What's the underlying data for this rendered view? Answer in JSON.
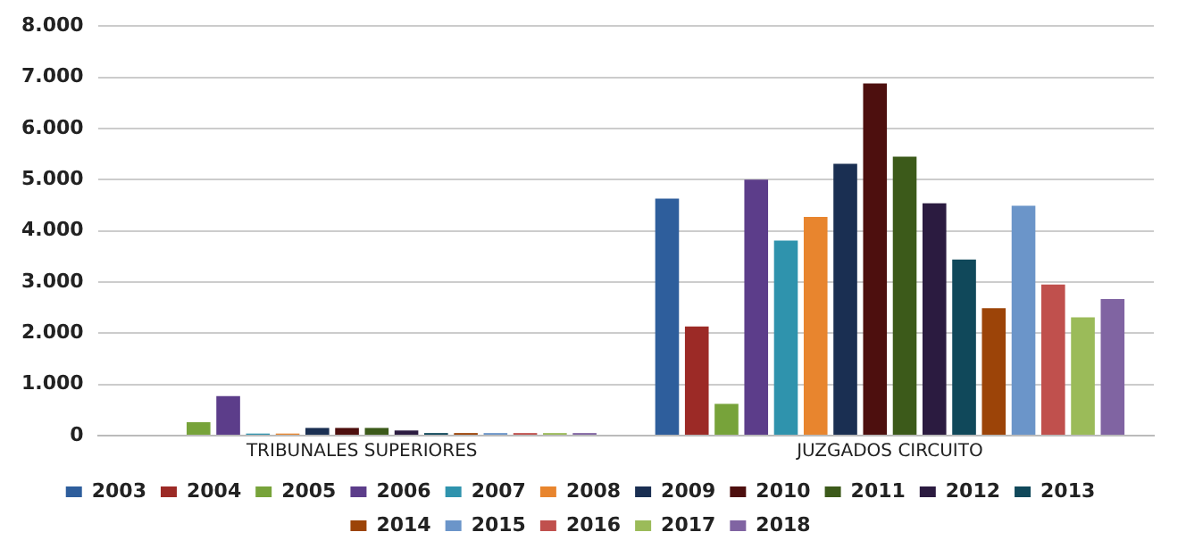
{
  "chart_data": {
    "type": "bar",
    "categories": [
      "TRIBUNALES SUPERIORES",
      "JUZGADOS CIRCUITO"
    ],
    "series": [
      {
        "name": "2003",
        "color": "#2e5e9c",
        "values": [
          0,
          4630
        ]
      },
      {
        "name": "2004",
        "color": "#9c2a26",
        "values": [
          0,
          2130
        ]
      },
      {
        "name": "2005",
        "color": "#77a33a",
        "values": [
          260,
          620
        ]
      },
      {
        "name": "2006",
        "color": "#5c3d8a",
        "values": [
          770,
          5000
        ]
      },
      {
        "name": "2007",
        "color": "#2f93ad",
        "values": [
          40,
          3810
        ]
      },
      {
        "name": "2008",
        "color": "#e8852e",
        "values": [
          40,
          4270
        ]
      },
      {
        "name": "2009",
        "color": "#1a2f52",
        "values": [
          150,
          5310
        ]
      },
      {
        "name": "2010",
        "color": "#4d0f0e",
        "values": [
          150,
          6880
        ]
      },
      {
        "name": "2011",
        "color": "#3c5a1a",
        "values": [
          150,
          5450
        ]
      },
      {
        "name": "2012",
        "color": "#2b1b40",
        "values": [
          100,
          4540
        ]
      },
      {
        "name": "2013",
        "color": "#10485a",
        "values": [
          50,
          3440
        ]
      },
      {
        "name": "2014",
        "color": "#9c4408",
        "values": [
          50,
          2490
        ]
      },
      {
        "name": "2015",
        "color": "#6b95c9",
        "values": [
          50,
          4490
        ]
      },
      {
        "name": "2016",
        "color": "#c0504d",
        "values": [
          50,
          2950
        ]
      },
      {
        "name": "2017",
        "color": "#9bbb59",
        "values": [
          50,
          2310
        ]
      },
      {
        "name": "2018",
        "color": "#8064a2",
        "values": [
          50,
          2670
        ]
      }
    ],
    "ylim": [
      0,
      8000
    ],
    "yticks": [
      0,
      {
        "value": 1000,
        "label": "1.000"
      },
      {
        "value": 2000,
        "label": "2.000"
      },
      {
        "value": 3000,
        "label": "3.000"
      },
      {
        "value": 4000,
        "label": "4.000"
      },
      {
        "value": 5000,
        "label": "5.000"
      },
      {
        "value": 6000,
        "label": "6.000"
      },
      {
        "value": 7000,
        "label": "7.000"
      },
      {
        "value": 8000,
        "label": "8.000"
      }
    ],
    "grid": "y",
    "legend": "bottom"
  }
}
